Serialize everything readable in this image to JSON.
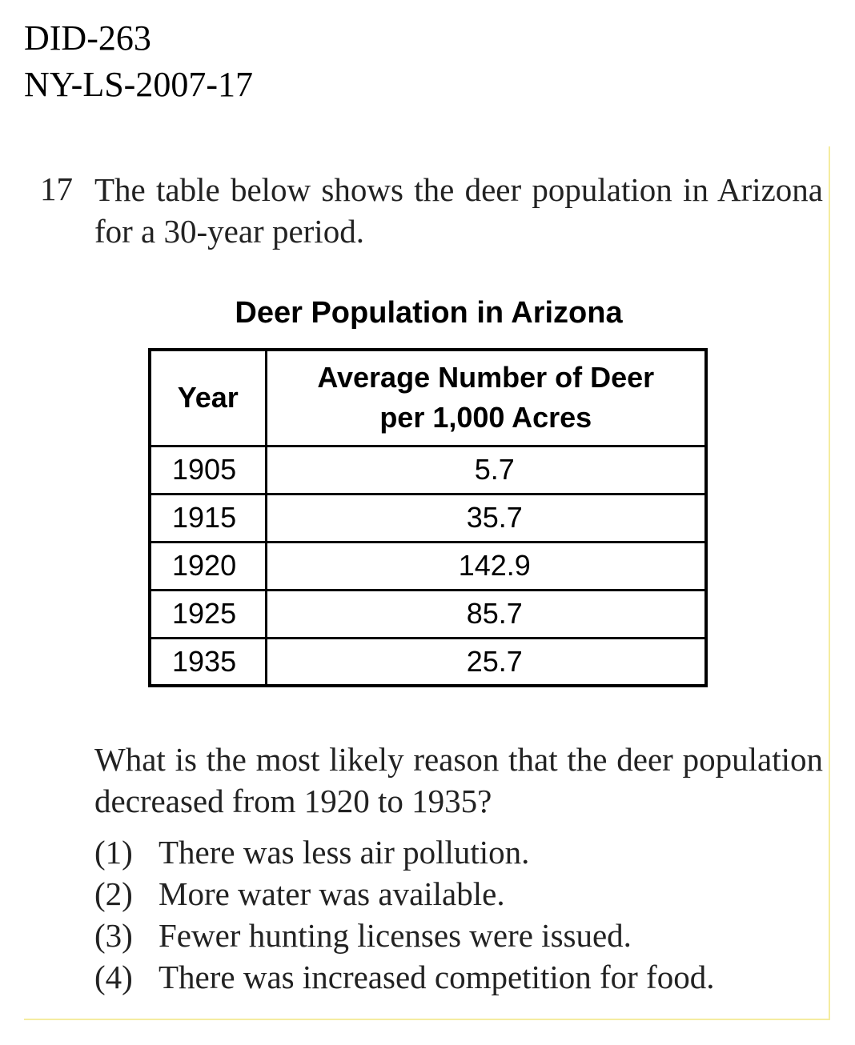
{
  "header": {
    "doc_id": "DID-263",
    "doc_code": "NY-LS-2007-17"
  },
  "question": {
    "number": "17",
    "stem": "The table below shows the deer population in Arizona for a 30-year period.",
    "prompt": "What is the most likely reason that the deer population decreased from 1920 to 1935?",
    "choices": [
      {
        "num": "(1)",
        "text": "There was less air pollution."
      },
      {
        "num": "(2)",
        "text": "More water was available."
      },
      {
        "num": "(3)",
        "text": "Fewer hunting licenses were issued."
      },
      {
        "num": "(4)",
        "text": "There was increased competition for food."
      }
    ]
  },
  "table": {
    "title": "Deer Population in Arizona",
    "headers": {
      "year": "Year",
      "deer_line1": "Average Number of Deer",
      "deer_line2": "per 1,000 Acres"
    },
    "rows": [
      {
        "year": "1905",
        "value": "5.7"
      },
      {
        "year": "1915",
        "value": "35.7"
      },
      {
        "year": "1920",
        "value": "142.9"
      },
      {
        "year": "1925",
        "value": "85.7"
      },
      {
        "year": "1935",
        "value": "25.7"
      }
    ]
  },
  "colors": {
    "panel_border": "#f5eca0",
    "text": "#222222"
  }
}
